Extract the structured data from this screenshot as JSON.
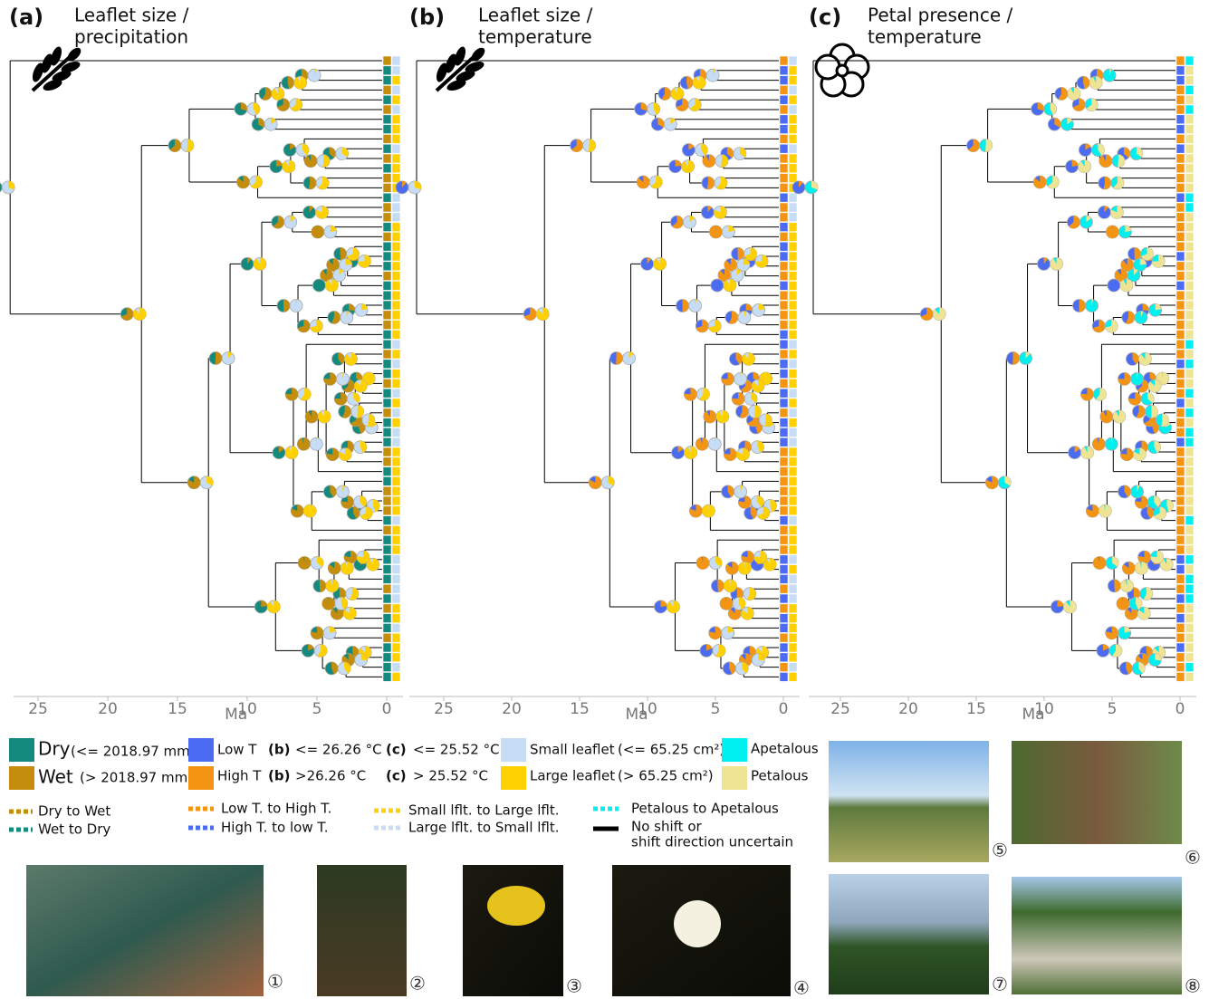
{
  "panels": [
    {
      "label": "(a)",
      "title": [
        "Leaflet size /",
        "precipitation"
      ],
      "axis_label": "Ma",
      "ticks": [
        25,
        20,
        15,
        10,
        5,
        0
      ]
    },
    {
      "label": "(b)",
      "title": [
        "Leaflet size /",
        "temperature"
      ],
      "axis_label": "Ma",
      "ticks": [
        25,
        20,
        15,
        10,
        5,
        0
      ]
    },
    {
      "label": "(c)",
      "title": [
        "Petal presence /",
        "temperature"
      ],
      "axis_label": "Ma",
      "ticks": [
        25,
        20,
        15,
        10,
        5,
        0
      ]
    }
  ],
  "legend": {
    "dry": {
      "name": "Dry",
      "range": "(<= 2018.97 mm)"
    },
    "wet": {
      "name": "Wet",
      "range": "(> 2018.97 mm)"
    },
    "low_t": {
      "name": "Low T",
      "b_tag": "(b)",
      "b_range": "<= 26.26 °C",
      "c_tag": "(c)",
      "c_range": "<= 25.52 °C"
    },
    "high_t": {
      "name": "High T",
      "b_tag": "(b)",
      "b_range": ">26.26 °C",
      "c_tag": "(c)",
      "c_range": "> 25.52 °C"
    },
    "small": {
      "name": "Small leaflet",
      "range": "(<= 65.25 cm²)"
    },
    "large": {
      "name": "Large leaflet",
      "range": "(> 65.25 cm²)"
    },
    "apetalous": "Apetalous",
    "petalous": "Petalous",
    "shifts": {
      "dry_wet": "Dry to Wet",
      "wet_dry": "Wet to Dry",
      "low_high": "Low T. to High T.",
      "high_low": "High T. to low T.",
      "small_large": "Small lflt. to Large lflt.",
      "large_small": "Large lflt. to Small lflt.",
      "pet_apet": "Petalous to Apetalous",
      "none": [
        "No shift or",
        "shift direction uncertain"
      ]
    }
  },
  "photos": [
    "①",
    "②",
    "③",
    "④",
    "⑤",
    "⑥",
    "⑦",
    "⑧"
  ]
}
